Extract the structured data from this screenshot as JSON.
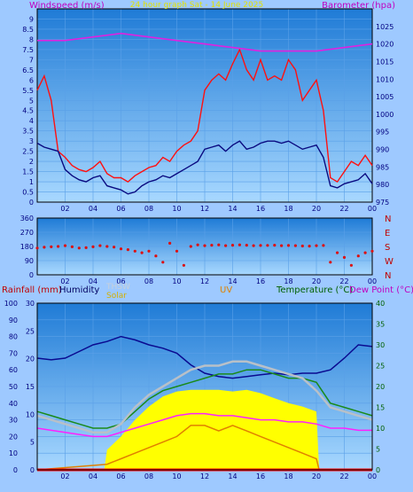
{
  "chart_data": [
    {
      "type": "line",
      "title": "24 hour graph Sat - 14 June 2025",
      "ylabel": "Windspeed (m/s)",
      "y2label": "Barometer (hpa)",
      "ylim": [
        0,
        9.5
      ],
      "y2lim": [
        975,
        1030
      ],
      "yticks": [
        "0",
        "0.5",
        "1",
        "1.5",
        "2",
        "2.5",
        "3",
        "3.5",
        "4",
        "4.5",
        "5",
        "5.5",
        "6",
        "6.5",
        "7",
        "7.5",
        "8",
        "8.5",
        "9"
      ],
      "y2ticks": [
        "975",
        "980",
        "985",
        "990",
        "995",
        "1000",
        "1005",
        "1010",
        "1015",
        "1020",
        "1025"
      ],
      "xticks": [
        "02",
        "04",
        "06",
        "08",
        "10",
        "12",
        "14",
        "16",
        "18",
        "20",
        "22",
        "00"
      ],
      "xlim": [
        0,
        24
      ],
      "grid": true,
      "series": [
        {
          "key": "gust",
          "color": "#ff1010",
          "x": [
            0,
            0.5,
            1,
            1.5,
            2,
            2.5,
            3,
            3.5,
            4,
            4.5,
            5,
            5.5,
            6,
            6.5,
            7,
            7.5,
            8,
            8.5,
            9,
            9.5,
            10,
            10.5,
            11,
            11.5,
            12,
            12.5,
            13,
            13.5,
            14,
            14.5,
            15,
            15.5,
            16,
            16.5,
            17,
            17.5,
            18,
            18.5,
            19,
            19.5,
            20,
            20.5,
            21,
            21.5,
            22,
            22.5,
            23,
            23.5,
            24
          ],
          "y": [
            5.5,
            6.2,
            5.0,
            2.5,
            2.2,
            1.8,
            1.6,
            1.5,
            1.7,
            2.0,
            1.4,
            1.2,
            1.2,
            1.0,
            1.3,
            1.5,
            1.7,
            1.8,
            2.2,
            2.0,
            2.5,
            2.8,
            3.0,
            3.5,
            5.5,
            6.0,
            6.3,
            6.0,
            6.8,
            7.5,
            6.5,
            6.0,
            7.0,
            6.0,
            6.2,
            6.0,
            7.0,
            6.5,
            5.0,
            5.5,
            6.0,
            4.5,
            1.2,
            1.0,
            1.5,
            2.0,
            1.8,
            2.3,
            1.8
          ]
        },
        {
          "key": "speed",
          "color": "#0a0a80",
          "x": [
            0,
            0.5,
            1,
            1.5,
            2,
            2.5,
            3,
            3.5,
            4,
            4.5,
            5,
            5.5,
            6,
            6.5,
            7,
            7.5,
            8,
            8.5,
            9,
            9.5,
            10,
            10.5,
            11,
            11.5,
            12,
            12.5,
            13,
            13.5,
            14,
            14.5,
            15,
            15.5,
            16,
            16.5,
            17,
            17.5,
            18,
            18.5,
            19,
            19.5,
            20,
            20.5,
            21,
            21.5,
            22,
            22.5,
            23,
            23.5,
            24
          ],
          "y": [
            2.9,
            2.7,
            2.6,
            2.5,
            1.6,
            1.3,
            1.1,
            1.0,
            1.2,
            1.3,
            0.8,
            0.7,
            0.6,
            0.4,
            0.5,
            0.8,
            1.0,
            1.1,
            1.3,
            1.2,
            1.4,
            1.6,
            1.8,
            2.0,
            2.6,
            2.7,
            2.8,
            2.5,
            2.8,
            3.0,
            2.6,
            2.7,
            2.9,
            3.0,
            3.0,
            2.9,
            3.0,
            2.8,
            2.6,
            2.7,
            2.8,
            2.2,
            0.8,
            0.7,
            0.9,
            1.0,
            1.1,
            1.4,
            0.9
          ]
        },
        {
          "key": "barometer",
          "axis": "y2",
          "color": "#e020e0",
          "x": [
            0,
            2,
            4,
            6,
            8,
            10,
            12,
            14,
            16,
            18,
            20,
            22,
            24
          ],
          "y": [
            1021,
            1021,
            1022,
            1023,
            1022,
            1021,
            1020,
            1019,
            1018,
            1018,
            1018,
            1019,
            1020
          ]
        }
      ]
    },
    {
      "type": "scatter",
      "ylim": [
        0,
        360
      ],
      "yticks": [
        "0",
        "90",
        "180",
        "270",
        "360"
      ],
      "y2ticks": [
        "N",
        "W",
        "S",
        "E",
        "N"
      ],
      "xticks": [
        "02",
        "04",
        "06",
        "08",
        "10",
        "12",
        "14",
        "16",
        "18",
        "20",
        "22",
        "00"
      ],
      "xlim": [
        0,
        24
      ],
      "grid": true,
      "series": [
        {
          "key": "direction",
          "color": "#dd1010",
          "x": [
            0,
            0.5,
            1,
            1.5,
            2,
            2.5,
            3,
            3.5,
            4,
            4.5,
            5,
            5.5,
            6,
            6.5,
            7,
            7.5,
            8,
            8.5,
            9,
            9.5,
            10,
            10.5,
            11,
            11.5,
            12,
            12.5,
            13,
            13.5,
            14,
            14.5,
            15,
            15.5,
            16,
            16.5,
            17,
            17.5,
            18,
            18.5,
            19,
            19.5,
            20,
            20.5,
            21,
            21.5,
            22,
            22.5,
            23,
            23.5,
            24
          ],
          "y": [
            170,
            175,
            178,
            180,
            185,
            178,
            170,
            172,
            178,
            185,
            180,
            176,
            165,
            160,
            150,
            140,
            150,
            120,
            80,
            200,
            150,
            60,
            180,
            190,
            185,
            188,
            190,
            185,
            188,
            190,
            188,
            185,
            186,
            187,
            188,
            185,
            186,
            185,
            183,
            182,
            185,
            186,
            80,
            140,
            110,
            60,
            120,
            140,
            150
          ]
        }
      ]
    },
    {
      "type": "line",
      "labels": [
        "Rainfall (mm)",
        "Humidity",
        "THSW",
        "Solar",
        "UV",
        "Temperature (°C)",
        "Dew Point (°C)"
      ],
      "ylim_humidity": [
        0,
        100
      ],
      "yticks_humidity": [
        "0",
        "10",
        "20",
        "30",
        "40",
        "50",
        "60",
        "70",
        "80",
        "90",
        "100"
      ],
      "ylim_rain": [
        0,
        30
      ],
      "yticks_rain": [
        "0",
        "5",
        "10",
        "15",
        "20",
        "25",
        "30"
      ],
      "ylim_temp": [
        0,
        40
      ],
      "yticks_temp": [
        "0",
        "5",
        "10",
        "15",
        "20",
        "25",
        "30",
        "35",
        "40"
      ],
      "xticks": [
        "02",
        "04",
        "06",
        "08",
        "10",
        "12",
        "14",
        "16",
        "18",
        "20",
        "22",
        "00"
      ],
      "xlim": [
        0,
        24
      ],
      "grid": true,
      "series": [
        {
          "key": "humidity",
          "axis": "humidity",
          "color": "#0a0a90",
          "x": [
            0,
            1,
            2,
            3,
            4,
            5,
            6,
            7,
            8,
            9,
            10,
            11,
            12,
            13,
            14,
            15,
            16,
            17,
            18,
            19,
            20,
            21,
            22,
            23,
            24
          ],
          "y": [
            67,
            66,
            67,
            71,
            75,
            77,
            80,
            78,
            75,
            73,
            70,
            63,
            58,
            56,
            55,
            56,
            57,
            58,
            57,
            58,
            58,
            60,
            67,
            75,
            74
          ]
        },
        {
          "key": "temperature",
          "axis": "temp",
          "color": "#1a8a1a",
          "x": [
            0,
            1,
            2,
            3,
            4,
            5,
            6,
            7,
            8,
            9,
            10,
            11,
            12,
            13,
            14,
            15,
            16,
            17,
            18,
            19,
            20,
            21,
            22,
            23,
            24
          ],
          "y": [
            14,
            13,
            12,
            11,
            10,
            10,
            11,
            14,
            17,
            19,
            20,
            21,
            22,
            23,
            23,
            24,
            24,
            23,
            22,
            22,
            21,
            16,
            15,
            14,
            13
          ]
        },
        {
          "key": "thsw",
          "axis": "temp",
          "color": "#b8c0c8",
          "x": [
            0,
            1,
            2,
            3,
            4,
            5,
            6,
            7,
            8,
            9,
            10,
            11,
            12,
            13,
            14,
            15,
            16,
            17,
            18,
            19,
            20,
            21,
            22,
            23,
            24
          ],
          "y": [
            13,
            12,
            11,
            10,
            9,
            9,
            11,
            15,
            18,
            20,
            22,
            24,
            25,
            25,
            26,
            26,
            25,
            24,
            23,
            22,
            19,
            15,
            14,
            13,
            12
          ]
        },
        {
          "key": "dewpoint",
          "axis": "temp",
          "color": "#ff20ff",
          "x": [
            0,
            1,
            2,
            3,
            4,
            5,
            6,
            7,
            8,
            9,
            10,
            11,
            12,
            13,
            14,
            15,
            16,
            17,
            18,
            19,
            20,
            21,
            22,
            23,
            24
          ],
          "y": [
            10,
            9.5,
            9,
            8.5,
            8,
            8,
            9,
            10,
            11,
            12,
            13,
            13.5,
            13.5,
            13,
            13,
            12.5,
            12,
            12,
            11.5,
            11.5,
            11,
            10,
            10,
            9.5,
            9.5
          ]
        },
        {
          "key": "solar",
          "axis": "humidity",
          "color": "#ffff00",
          "x": [
            0,
            4.8,
            5,
            6,
            7,
            8,
            9,
            10,
            11,
            12,
            13,
            14,
            15,
            16,
            17,
            18,
            19,
            20,
            20.2,
            24
          ],
          "y": [
            0,
            0,
            12,
            20,
            30,
            38,
            44,
            47,
            48,
            48,
            48,
            47,
            48,
            46,
            43,
            40,
            38,
            35,
            0,
            0
          ]
        },
        {
          "key": "uv",
          "axis": "rain",
          "color": "#e08000",
          "x": [
            0,
            5,
            6,
            7,
            8,
            9,
            10,
            11,
            12,
            13,
            14,
            15,
            16,
            17,
            18,
            19,
            20,
            20.2,
            24
          ],
          "y": [
            0,
            1,
            2,
            3,
            4,
            5,
            6,
            8,
            8,
            7,
            8,
            7,
            6,
            5,
            4,
            3,
            2,
            0,
            0
          ]
        },
        {
          "key": "rain",
          "axis": "rain",
          "color": "#ff0000",
          "x": [
            0,
            24
          ],
          "y": [
            0,
            0
          ]
        }
      ]
    }
  ]
}
